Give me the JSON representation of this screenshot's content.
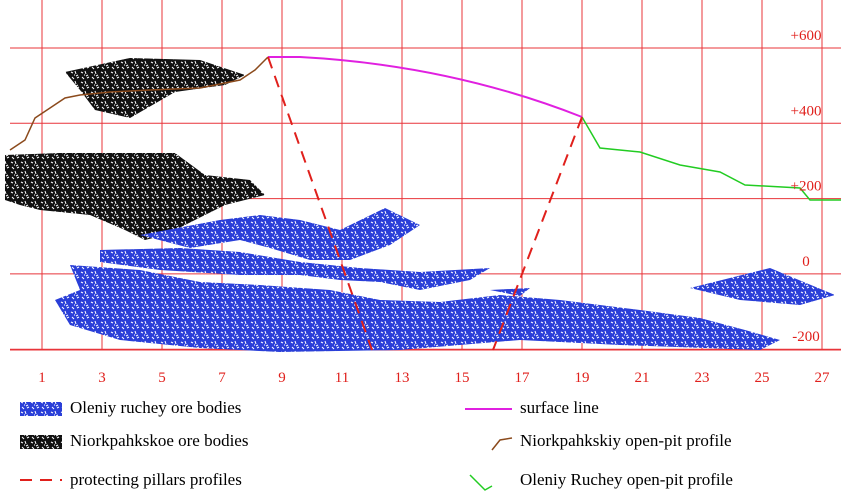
{
  "x_axis": {
    "labels": [
      "1",
      "3",
      "5",
      "7",
      "9",
      "11",
      "13",
      "15",
      "17",
      "19",
      "21",
      "23",
      "25",
      "27"
    ]
  },
  "y_axis": {
    "labels": [
      "+600",
      "+400",
      "+200",
      "0",
      "-200"
    ]
  },
  "legend": [
    {
      "label": "Oleniy ruchey ore bodies"
    },
    {
      "label": "Niorkpahkskoe ore bodies"
    },
    {
      "label": "protecting pillars profiles"
    },
    {
      "label": "surface line"
    },
    {
      "label": "Niorkpahkskiy open-pit profile"
    },
    {
      "label": "Oleniy Ruchey open-pit profile"
    }
  ]
}
